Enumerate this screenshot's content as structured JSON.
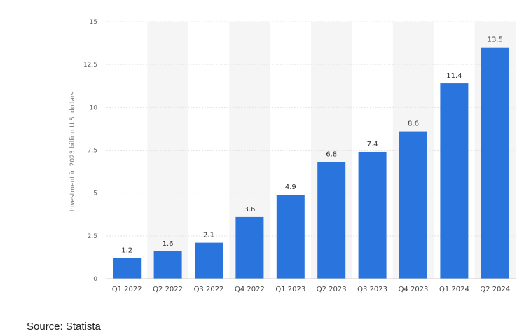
{
  "chart_data": {
    "type": "bar",
    "categories": [
      "Q1 2022",
      "Q2 2022",
      "Q3 2022",
      "Q4 2022",
      "Q1 2023",
      "Q2 2023",
      "Q3 2023",
      "Q4 2023",
      "Q1 2024",
      "Q2 2024"
    ],
    "values": [
      1.2,
      1.6,
      2.1,
      3.6,
      4.9,
      6.8,
      7.4,
      8.6,
      11.4,
      13.5
    ],
    "data_labels": [
      "1.2",
      "1.6",
      "2.1",
      "3.6",
      "4.9",
      "6.8",
      "7.4",
      "8.6",
      "11.4",
      "13.5"
    ],
    "ylabel": "Investment in 2023 billion U.S. dollars",
    "ylim": [
      0,
      15
    ],
    "yticks": [
      0,
      2.5,
      5,
      7.5,
      10,
      12.5,
      15
    ],
    "ytick_labels": [
      "0",
      "2.5",
      "5",
      "7.5",
      "10",
      "12.5",
      "15"
    ],
    "grid": true,
    "bar_color": "#2a74dd",
    "band_color": "#f5f5f5"
  },
  "source": {
    "text": "Source: Statista"
  }
}
